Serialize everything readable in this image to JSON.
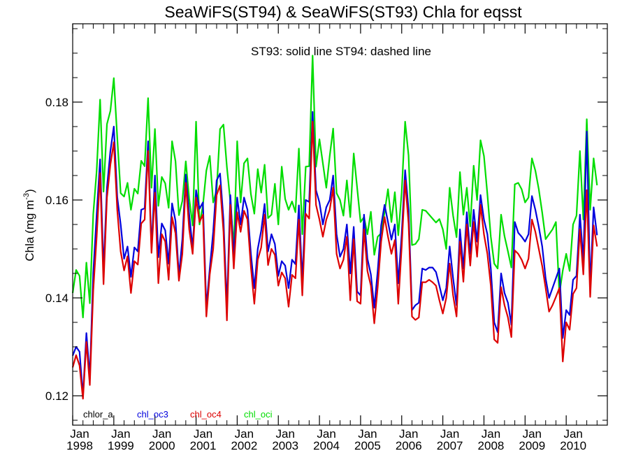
{
  "chart_data": {
    "type": "line",
    "title": "SeaWiFS(ST94) & SeaWiFS(ST93)  Chla for eqsst",
    "annotation": "ST93: solid line   ST94: dashed line",
    "ylabel_text": "Chla (mg m",
    "ylabel_sup": "-3",
    "ylabel_close": ")",
    "xlim": [
      1998.0,
      2011.0
    ],
    "ylim": [
      0.114,
      0.196
    ],
    "yticks": [
      0.12,
      0.14,
      0.16,
      0.18
    ],
    "ytick_labels": [
      "0.12",
      "0.14",
      "0.16",
      "0.18"
    ],
    "xtick_month": "Jan",
    "xtick_years": [
      "1998",
      "1999",
      "2000",
      "2001",
      "2002",
      "2003",
      "2004",
      "2005",
      "2006",
      "2007",
      "2008",
      "2009",
      "2010"
    ],
    "x_start": 1998.0,
    "x_step_months": 1,
    "legend": [
      {
        "name": "chlor_a",
        "color": "#000000"
      },
      {
        "name": "chl_oc3",
        "color": "#0000dd"
      },
      {
        "name": "chl_oc4",
        "color": "#dd0000"
      },
      {
        "name": "chl_oci",
        "color": "#00dd00"
      }
    ],
    "series": [
      {
        "name": "chl_oci",
        "color": "#00dd00",
        "values": [
          0.141,
          0.1457,
          0.1445,
          0.136,
          0.1472,
          0.1389,
          0.1571,
          0.166,
          0.1805,
          0.1617,
          0.1755,
          0.1782,
          0.1849,
          0.1728,
          0.1614,
          0.1607,
          0.1635,
          0.158,
          0.1623,
          0.1613,
          0.168,
          0.1669,
          0.1808,
          0.1625,
          0.1745,
          0.1588,
          0.1647,
          0.1634,
          0.1584,
          0.172,
          0.1679,
          0.1569,
          0.1598,
          0.1679,
          0.1603,
          0.1548,
          0.176,
          0.155,
          0.1589,
          0.166,
          0.169,
          0.1595,
          0.162,
          0.1745,
          0.1754,
          0.1667,
          0.1597,
          0.1502,
          0.172,
          0.1595,
          0.1675,
          0.1685,
          0.1612,
          0.1572,
          0.1663,
          0.1615,
          0.1672,
          0.1563,
          0.157,
          0.1633,
          0.155,
          0.1668,
          0.1602,
          0.158,
          0.1597,
          0.1575,
          0.1705,
          0.153,
          0.1668,
          0.1669,
          0.1895,
          0.1668,
          0.1724,
          0.1675,
          0.1625,
          0.169,
          0.1746,
          0.1614,
          0.16,
          0.1568,
          0.164,
          0.1565,
          0.1695,
          0.1625,
          0.1555,
          0.1565,
          0.153,
          0.1576,
          0.1488,
          0.1525,
          0.1532,
          0.1575,
          0.1622,
          0.1555,
          0.1616,
          0.1528,
          0.1616,
          0.176,
          0.1691,
          0.1508,
          0.151,
          0.152,
          0.158,
          0.1578,
          0.157,
          0.1562,
          0.1554,
          0.1561,
          0.154,
          0.15,
          0.1625,
          0.1568,
          0.1524,
          0.1657,
          0.157,
          0.1625,
          0.1546,
          0.167,
          0.16,
          0.1722,
          0.169,
          0.1612,
          0.1525,
          0.147,
          0.146,
          0.157,
          0.1526,
          0.1495,
          0.1462,
          0.1632,
          0.1635,
          0.1622,
          0.1595,
          0.1605,
          0.1685,
          0.166,
          0.1622,
          0.1574,
          0.152,
          0.153,
          0.154,
          0.1555,
          0.1408,
          0.1456,
          0.149,
          0.1455,
          0.155,
          0.1568,
          0.17,
          0.156,
          0.1765,
          0.158,
          0.1685,
          0.163
        ]
      },
      {
        "name": "chl_oc3",
        "color": "#0000dd",
        "values": [
          0.1282,
          0.13,
          0.129,
          0.12,
          0.1328,
          0.1238,
          0.145,
          0.157,
          0.1683,
          0.1456,
          0.1625,
          0.17,
          0.175,
          0.1606,
          0.155,
          0.148,
          0.1505,
          0.1443,
          0.1503,
          0.1495,
          0.158,
          0.1583,
          0.172,
          0.15,
          0.165,
          0.1483,
          0.1552,
          0.1538,
          0.147,
          0.1593,
          0.1557,
          0.1445,
          0.152,
          0.1652,
          0.157,
          0.1502,
          0.162,
          0.1582,
          0.1595,
          0.138,
          0.146,
          0.1535,
          0.164,
          0.1654,
          0.156,
          0.1381,
          0.161,
          0.1485,
          0.1605,
          0.155,
          0.1605,
          0.158,
          0.149,
          0.142,
          0.15,
          0.1537,
          0.1592,
          0.1495,
          0.153,
          0.151,
          0.1445,
          0.1475,
          0.1466,
          0.142,
          0.1478,
          0.1469,
          0.1589,
          0.1435,
          0.16,
          0.1596,
          0.178,
          0.162,
          0.1595,
          0.155,
          0.1585,
          0.16,
          0.165,
          0.153,
          0.1484,
          0.15,
          0.155,
          0.145,
          0.1545,
          0.1413,
          0.1405,
          0.157,
          0.148,
          0.1448,
          0.138,
          0.1455,
          0.1548,
          0.159,
          0.1555,
          0.1519,
          0.155,
          0.143,
          0.153,
          0.1661,
          0.158,
          0.1375,
          0.1385,
          0.139,
          0.146,
          0.1457,
          0.1462,
          0.1462,
          0.1453,
          0.1425,
          0.1395,
          0.142,
          0.1505,
          0.144,
          0.1385,
          0.154,
          0.146,
          0.1575,
          0.149,
          0.158,
          0.1515,
          0.161,
          0.156,
          0.153,
          0.146,
          0.135,
          0.133,
          0.145,
          0.141,
          0.139,
          0.1345,
          0.1555,
          0.1533,
          0.1525,
          0.1515,
          0.153,
          0.1608,
          0.158,
          0.1545,
          0.1505,
          0.144,
          0.14,
          0.142,
          0.144,
          0.146,
          0.1318,
          0.1375,
          0.1365,
          0.1437,
          0.1445,
          0.157,
          0.1476,
          0.174,
          0.142,
          0.1585,
          0.1528
        ]
      },
      {
        "name": "chl_oc4",
        "color": "#dd0000",
        "values": [
          0.1258,
          0.1283,
          0.1262,
          0.1194,
          0.131,
          0.1222,
          0.1415,
          0.1525,
          0.1655,
          0.1428,
          0.1605,
          0.1672,
          0.1718,
          0.158,
          0.1495,
          0.1456,
          0.1485,
          0.141,
          0.1475,
          0.1468,
          0.1552,
          0.156,
          0.17,
          0.1492,
          0.1615,
          0.143,
          0.153,
          0.1515,
          0.1437,
          0.1565,
          0.1532,
          0.1435,
          0.149,
          0.1635,
          0.154,
          0.149,
          0.1605,
          0.1555,
          0.157,
          0.1362,
          0.1448,
          0.15,
          0.161,
          0.163,
          0.1535,
          0.1354,
          0.159,
          0.146,
          0.1575,
          0.1535,
          0.1578,
          0.156,
          0.1463,
          0.1388,
          0.1478,
          0.1503,
          0.157,
          0.1467,
          0.15,
          0.1488,
          0.1425,
          0.1452,
          0.144,
          0.1382,
          0.1447,
          0.144,
          0.156,
          0.1405,
          0.1572,
          0.1562,
          0.176,
          0.159,
          0.156,
          0.1525,
          0.156,
          0.158,
          0.1625,
          0.149,
          0.146,
          0.1478,
          0.1525,
          0.1395,
          0.152,
          0.1393,
          0.1388,
          0.154,
          0.1455,
          0.1425,
          0.1348,
          0.1422,
          0.1515,
          0.1565,
          0.1525,
          0.149,
          0.1518,
          0.1388,
          0.1505,
          0.164,
          0.1552,
          0.1362,
          0.1355,
          0.136,
          0.1432,
          0.1432,
          0.1437,
          0.1432,
          0.1425,
          0.1395,
          0.1368,
          0.14,
          0.147,
          0.1405,
          0.1362,
          0.1515,
          0.1433,
          0.155,
          0.1466,
          0.1555,
          0.1484,
          0.159,
          0.153,
          0.149,
          0.1425,
          0.1315,
          0.1308,
          0.1422,
          0.1385,
          0.136,
          0.132,
          0.1497,
          0.149,
          0.1478,
          0.146,
          0.148,
          0.156,
          0.1535,
          0.15,
          0.1465,
          0.142,
          0.1372,
          0.1385,
          0.1402,
          0.142,
          0.127,
          0.135,
          0.1335,
          0.1408,
          0.142,
          0.154,
          0.1448,
          0.162,
          0.1402,
          0.1548,
          0.1505
        ]
      }
    ]
  }
}
